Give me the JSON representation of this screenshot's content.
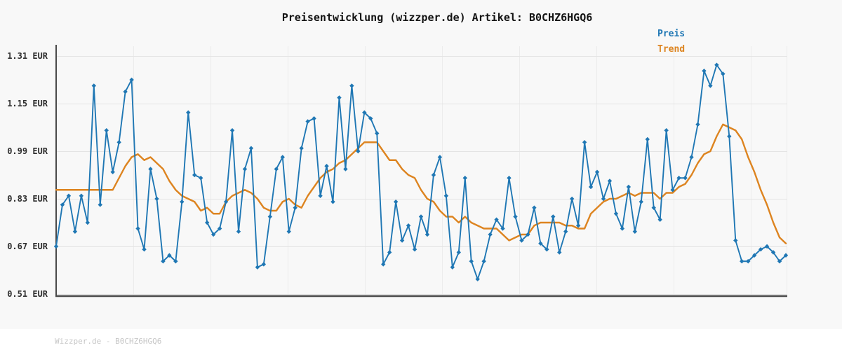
{
  "header": {
    "title": "Preisentwicklung (wizzper.de) Artikel: B0CHZ6HGQ6"
  },
  "legend": {
    "items": [
      {
        "label": "Preis",
        "color": "#1f77b4"
      },
      {
        "label": "Trend",
        "color": "#dd8420"
      }
    ]
  },
  "y_axis": {
    "unit": "EUR",
    "ticks": [
      {
        "label": "1.31 EUR",
        "value": 1.31
      },
      {
        "label": "1.15 EUR",
        "value": 1.15
      },
      {
        "label": "0.99 EUR",
        "value": 0.99
      },
      {
        "label": "0.83 EUR",
        "value": 0.83
      },
      {
        "label": "0.67 EUR",
        "value": 0.67
      },
      {
        "label": "0.51 EUR",
        "value": 0.51
      }
    ]
  },
  "footer": {
    "watermark": "Wizzper.de - B0CHZ6HGQ6"
  },
  "colors": {
    "background": "#f8f8f8",
    "footer_background": "#ffffff",
    "preis_line": "#1f77b4",
    "trend_line": "#dd8420",
    "h_gridline": "#e4e4e4",
    "v_gridline": "#ececec",
    "axis": "#4a4a4a",
    "title_text": "#141414",
    "tick_text": "#2e2e2e",
    "watermark_text": "#c6c6c6"
  },
  "chart_data": {
    "type": "line",
    "title": "Preisentwicklung (wizzper.de) Artikel: B0CHZ6HGQ6",
    "xlabel": "",
    "ylabel": "EUR",
    "ylim": [
      0.51,
      1.31
    ],
    "y_ticks": [
      1.31,
      1.15,
      0.99,
      0.83,
      0.67,
      0.51
    ],
    "x_tick_labels_visible": false,
    "grid": "horizontal solid + faint vertical",
    "legend_position": "top-right",
    "n_points": 117,
    "series": [
      {
        "name": "Preis",
        "color": "#1f77b4",
        "style": "line+diamond-markers",
        "values": [
          0.67,
          0.81,
          0.84,
          0.72,
          0.84,
          0.75,
          1.21,
          0.81,
          1.06,
          0.92,
          1.02,
          1.19,
          1.23,
          0.73,
          0.66,
          0.93,
          0.83,
          0.62,
          0.64,
          0.62,
          0.82,
          1.12,
          0.91,
          0.9,
          0.75,
          0.71,
          0.73,
          0.82,
          1.06,
          0.72,
          0.93,
          1.0,
          0.6,
          0.61,
          0.77,
          0.93,
          0.97,
          0.72,
          0.8,
          1.0,
          1.09,
          1.1,
          0.84,
          0.94,
          0.82,
          1.17,
          0.93,
          1.21,
          0.99,
          1.12,
          1.1,
          1.05,
          0.61,
          0.65,
          0.82,
          0.69,
          0.74,
          0.66,
          0.77,
          0.71,
          0.91,
          0.97,
          0.84,
          0.6,
          0.65,
          0.9,
          0.62,
          0.56,
          0.62,
          0.71,
          0.76,
          0.73,
          0.9,
          0.77,
          0.69,
          0.71,
          0.8,
          0.68,
          0.66,
          0.77,
          0.65,
          0.72,
          0.83,
          0.74,
          1.02,
          0.87,
          0.92,
          0.83,
          0.89,
          0.78,
          0.73,
          0.87,
          0.72,
          0.82,
          1.03,
          0.8,
          0.76,
          1.06,
          0.86,
          0.9,
          0.9,
          0.97,
          1.08,
          1.26,
          1.21,
          1.28,
          1.25,
          1.04,
          0.69,
          0.62,
          0.62,
          0.64,
          0.66,
          0.67,
          0.65,
          0.62,
          0.64
        ]
      },
      {
        "name": "Trend",
        "color": "#dd8420",
        "style": "smooth-line",
        "values": [
          0.86,
          0.86,
          0.86,
          0.86,
          0.86,
          0.86,
          0.86,
          0.86,
          0.86,
          0.86,
          0.9,
          0.94,
          0.97,
          0.98,
          0.96,
          0.97,
          0.95,
          0.93,
          0.89,
          0.86,
          0.84,
          0.83,
          0.82,
          0.79,
          0.8,
          0.78,
          0.78,
          0.82,
          0.84,
          0.85,
          0.86,
          0.85,
          0.83,
          0.8,
          0.79,
          0.79,
          0.82,
          0.83,
          0.81,
          0.8,
          0.84,
          0.87,
          0.9,
          0.92,
          0.93,
          0.95,
          0.96,
          0.98,
          1.0,
          1.02,
          1.02,
          1.02,
          0.99,
          0.96,
          0.96,
          0.93,
          0.91,
          0.9,
          0.86,
          0.83,
          0.82,
          0.79,
          0.77,
          0.77,
          0.75,
          0.77,
          0.75,
          0.74,
          0.73,
          0.73,
          0.73,
          0.71,
          0.69,
          0.7,
          0.71,
          0.71,
          0.74,
          0.75,
          0.75,
          0.75,
          0.75,
          0.74,
          0.74,
          0.73,
          0.73,
          0.78,
          0.8,
          0.82,
          0.83,
          0.83,
          0.84,
          0.85,
          0.84,
          0.85,
          0.85,
          0.85,
          0.83,
          0.85,
          0.85,
          0.87,
          0.88,
          0.91,
          0.95,
          0.98,
          0.99,
          1.04,
          1.08,
          1.07,
          1.06,
          1.03,
          0.97,
          0.92,
          0.86,
          0.81,
          0.75,
          0.7,
          0.68
        ]
      }
    ]
  }
}
